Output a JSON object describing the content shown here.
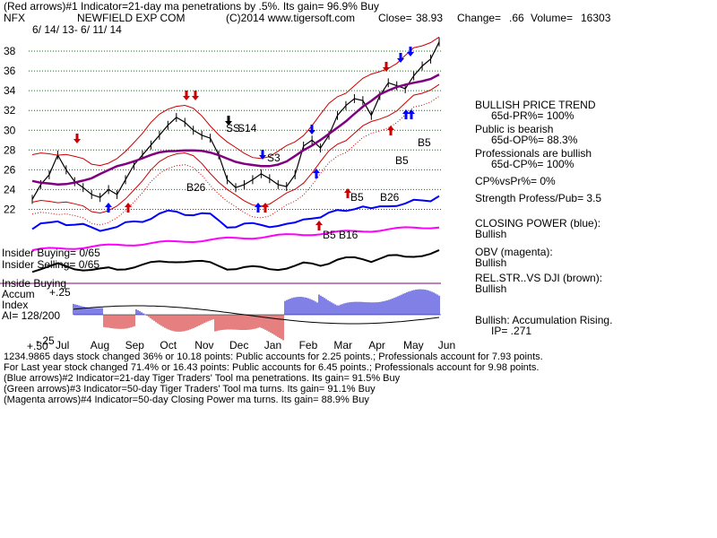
{
  "header": {
    "line1": "(Red arrows)#1 Indicator=21-day ma penetrations by .5%. Its gain= 96.9% Buy",
    "ticker": "NFX",
    "company": "NEWFIELD EXP COM",
    "copyright": "(C)2014 www.tigersoft.com",
    "close_label": "Close=",
    "close_value": "38.93",
    "change_label": "Change=",
    "change_value": ".66",
    "volume_label": "Volume=",
    "volume_value": "16303",
    "date_range": "6/ 14/ 13- 6/ 11/ 14"
  },
  "right_panel": {
    "trend_title": "BULLISH PRICE TREND",
    "trend_value": "65d-PR%= 100%",
    "public_title": "Public is bearish",
    "public_value": "65d-OP%= 88.3%",
    "pro_title": "Professionals are bullish",
    "pro_value": "65d-CP%= 100%",
    "cpvspr": "CP%vsPr%= 0%",
    "strength": "Strength Profess/Pub= 3.5",
    "closing_power_title": "CLOSING POWER (blue):",
    "closing_power_value": "Bullish",
    "obv_title": "OBV (magenta):",
    "obv_value": "Bullish",
    "relstr_title": "REL.STR..VS DJI (brown):",
    "relstr_value": "Bullish",
    "accum_title": "Bullish: Accumulation Rising.",
    "ip": "IP= .271"
  },
  "left_labels": {
    "insider_buying": "Insider Buying= 0/65",
    "insider_selling": "Insider Selling= 0/65",
    "inside_buying": "Inside Buying",
    "accum": "Accum",
    "index": "Index",
    "ai": "AI= 128/200",
    "plus25": "+.25",
    "plus50": "+.50",
    "minus25": "-.25"
  },
  "annotations": {
    "ss": "SS",
    "s14": "S14",
    "s3": "S3",
    "b26a": "B26",
    "b5a": "B5",
    "b16": "B16",
    "b5b": "B5",
    "b26b": "B26",
    "b5c": "B5",
    "b5d": "B5"
  },
  "footer": {
    "line1": "1234.9865 days stock changed  36% or  10.18 points:  Public accounts for  2.25 points.;  Professionals account for  7.93 points.",
    "line2": "For Last year stock changed  71.4% or  16.43 points:  Public accounts for  6.45 points.;  Professionals account for  9.98 points.",
    "line3": "(Blue arrows)#2 Indicator=21-day Tiger Traders' Tool ma penetrations. Its gain= 91.5% Buy",
    "line4": "(Green arrows)#3 Indicator=50-day Tiger Traders' Tool ma turns. Its gain= 91.1% Buy",
    "line5": "(Magenta arrows)#4 Indicator=50-day Closing Power ma turns. Its gain= 88.9% Buy"
  },
  "colors": {
    "price": "#000000",
    "ma21_band": "#cc0000",
    "ma50": "#800080",
    "closing_power": "#0000ff",
    "obv": "#ff00ff",
    "relstr": "#000000",
    "grid": "#008000",
    "accum_pos": "#0000cc",
    "accum_neg": "#cc0000"
  },
  "chart_data": {
    "type": "line",
    "title": "NEWFIELD EXP COM",
    "y_ticks": [
      22,
      24,
      26,
      28,
      30,
      32,
      34,
      36,
      38
    ],
    "ylim": [
      20.5,
      40
    ],
    "months": [
      "Jul",
      "Aug",
      "Sep",
      "Oct",
      "Nov",
      "Dec",
      "Jan",
      "Feb",
      "Mar",
      "Apr",
      "May",
      "Jun"
    ],
    "series": [
      {
        "values": [
          23,
          24.5,
          25.5,
          27.5,
          26,
          24.8,
          24.2,
          23.5,
          23.2,
          24,
          23.5,
          25,
          26.5,
          27.5,
          28.5,
          29.5,
          30.5,
          31.3,
          30.8,
          30,
          29.5,
          29.2,
          27.5,
          25,
          24.2,
          24.5,
          25,
          25.6,
          25.1,
          24.5,
          24.3,
          25.5,
          28.4,
          29,
          28.2,
          29.5,
          31.5,
          32.5,
          33.2,
          33,
          31.5,
          33.5,
          34.8,
          34.5,
          34.2,
          35.5,
          36.5,
          37.2,
          38.93
        ]
      }
    ]
  }
}
